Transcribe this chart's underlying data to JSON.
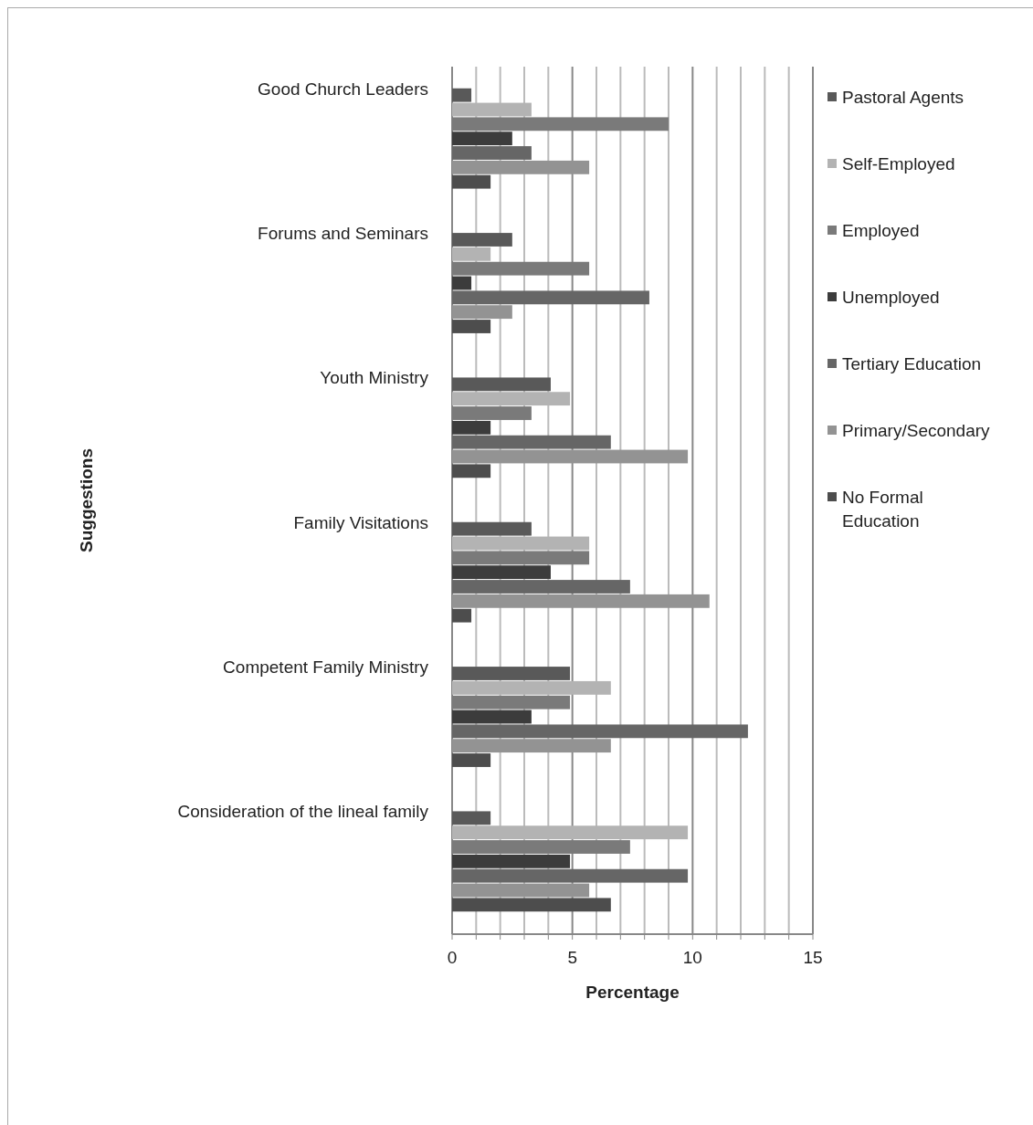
{
  "chart_data": {
    "type": "bar",
    "orientation": "horizontal",
    "xlabel": "Percentage",
    "ylabel": "Suggestions",
    "categories": [
      "Good Church Leaders",
      "Forums and Seminars",
      "Youth Ministry",
      "Family Visitations",
      "Competent Family Ministry",
      "Consideration of the lineal family"
    ],
    "series": [
      {
        "name": "Pastoral Agents",
        "color": "#595959",
        "values": [
          0.8,
          2.5,
          4.1,
          3.3,
          4.9,
          1.6
        ]
      },
      {
        "name": "Self-Employed",
        "color": "#b3b3b3",
        "values": [
          3.3,
          1.6,
          4.9,
          5.7,
          6.6,
          9.8
        ]
      },
      {
        "name": "Employed",
        "color": "#7a7a7a",
        "values": [
          9.0,
          5.7,
          3.3,
          5.7,
          4.9,
          7.4
        ]
      },
      {
        "name": "Unemployed",
        "color": "#3c3c3c",
        "values": [
          2.5,
          0.8,
          1.6,
          4.1,
          3.3,
          4.9
        ]
      },
      {
        "name": "Tertiary Education",
        "color": "#666666",
        "values": [
          3.3,
          8.2,
          6.6,
          7.4,
          12.3,
          9.8
        ]
      },
      {
        "name": "Primary/Secondary",
        "color": "#939393",
        "values": [
          5.7,
          2.5,
          9.8,
          10.7,
          6.6,
          5.7
        ]
      },
      {
        "name": "No Formal Education",
        "color": "#4d4d4d",
        "values": [
          1.6,
          1.6,
          1.6,
          0.8,
          1.6,
          6.6
        ]
      }
    ],
    "xlim": [
      0,
      15
    ],
    "xticks": [
      0,
      {
        "value": 1,
        "label": null
      },
      {
        "value": 2,
        "label": null
      },
      {
        "value": 3,
        "label": null
      },
      {
        "value": 4,
        "label": null
      },
      5,
      {
        "value": 6,
        "label": null
      },
      {
        "value": 7,
        "label": null
      },
      {
        "value": 8,
        "label": null
      },
      {
        "value": 9,
        "label": null
      },
      10,
      {
        "value": 11,
        "label": null
      },
      {
        "value": 12,
        "label": null
      },
      {
        "value": 13,
        "label": null
      },
      {
        "value": 14,
        "label": null
      },
      15
    ],
    "grid": "x",
    "legend": "right"
  }
}
